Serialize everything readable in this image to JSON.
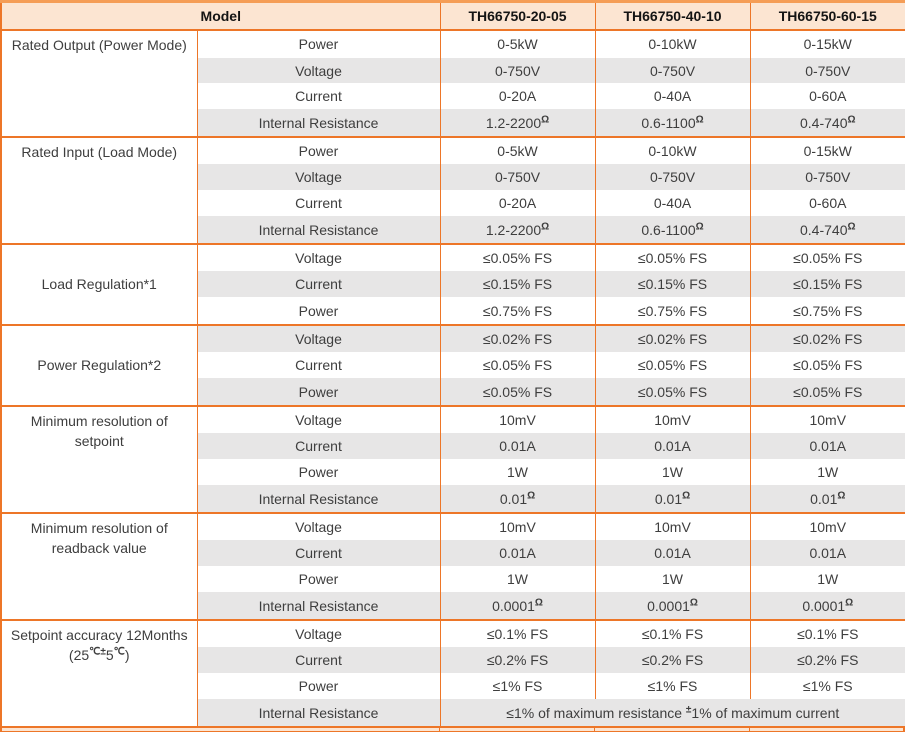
{
  "theme": {
    "orange": "#ED7628",
    "orange_light": "#F59D56",
    "peach": "#FCE5D2",
    "stripe_gray": "#E7E6E6",
    "text_body": "#3E3E3E",
    "text_head": "#141414"
  },
  "table": {
    "header": {
      "model_label": "Model",
      "model_columns": [
        "TH66750-20-05",
        "TH66750-40-10",
        "TH66750-60-15"
      ]
    },
    "sections": [
      {
        "group": "Rated Output (Power Mode)",
        "rows": [
          {
            "param": "Power",
            "values": [
              "0-5kW",
              "0-10kW",
              "0-15kW"
            ]
          },
          {
            "param": "Voltage",
            "values": [
              "0-750V",
              "0-750V",
              "0-750V"
            ]
          },
          {
            "param": "Current",
            "values": [
              "0-20A",
              "0-40A",
              "0-60A"
            ]
          },
          {
            "param": "Internal Resistance",
            "values": [
              "1.2-2200^{Ω}",
              "0.6-1100^{Ω}",
              "0.4-740^{Ω}"
            ]
          }
        ]
      },
      {
        "group": "Rated Input (Load Mode)",
        "rows": [
          {
            "param": "Power",
            "values": [
              "0-5kW",
              "0-10kW",
              "0-15kW"
            ]
          },
          {
            "param": "Voltage",
            "values": [
              "0-750V",
              "0-750V",
              "0-750V"
            ]
          },
          {
            "param": "Current",
            "values": [
              "0-20A",
              "0-40A",
              "0-60A"
            ]
          },
          {
            "param": "Internal Resistance",
            "values": [
              "1.2-2200^{Ω}",
              "0.6-1100^{Ω}",
              "0.4-740^{Ω}"
            ]
          }
        ]
      },
      {
        "group": "Load Regulation*1",
        "rows": [
          {
            "param": "Voltage",
            "values": [
              "≤0.05% FS",
              "≤0.05% FS",
              "≤0.05% FS"
            ]
          },
          {
            "param": "Current",
            "values": [
              "≤0.15% FS",
              "≤0.15% FS",
              "≤0.15% FS"
            ]
          },
          {
            "param": "Power",
            "values": [
              "≤0.75% FS",
              "≤0.75% FS",
              "≤0.75% FS"
            ]
          }
        ]
      },
      {
        "group": "Power Regulation*2",
        "rows": [
          {
            "param": "Voltage",
            "values": [
              "≤0.02% FS",
              "≤0.02% FS",
              "≤0.02% FS"
            ]
          },
          {
            "param": "Current",
            "values": [
              "≤0.05% FS",
              "≤0.05% FS",
              "≤0.05% FS"
            ]
          },
          {
            "param": "Power",
            "values": [
              "≤0.05% FS",
              "≤0.05% FS",
              "≤0.05% FS"
            ]
          }
        ]
      },
      {
        "group": "Minimum resolution of\nsetpoint",
        "rows": [
          {
            "param": "Voltage",
            "values": [
              "10mV",
              "10mV",
              "10mV"
            ]
          },
          {
            "param": "Current",
            "values": [
              "0.01A",
              "0.01A",
              "0.01A"
            ]
          },
          {
            "param": "Power",
            "values": [
              "1W",
              "1W",
              "1W"
            ]
          },
          {
            "param": "Internal Resistance",
            "values": [
              "0.01^{Ω}",
              "0.01^{Ω}",
              "0.01^{Ω}"
            ]
          }
        ]
      },
      {
        "group": "Minimum resolution of\nreadback value",
        "rows": [
          {
            "param": "Voltage",
            "values": [
              "10mV",
              "10mV",
              "10mV"
            ]
          },
          {
            "param": "Current",
            "values": [
              "0.01A",
              "0.01A",
              "0.01A"
            ]
          },
          {
            "param": "Power",
            "values": [
              "1W",
              "1W",
              "1W"
            ]
          },
          {
            "param": "Internal Resistance",
            "values": [
              "0.0001^{Ω}",
              "0.0001^{Ω}",
              "0.0001^{Ω}"
            ]
          }
        ]
      },
      {
        "group": "Setpoint accuracy 12Months\n(25^{℃±}5^{℃})",
        "rows": [
          {
            "param": "Voltage",
            "values": [
              "≤0.1% FS",
              "≤0.1% FS",
              "≤0.1% FS"
            ]
          },
          {
            "param": "Current",
            "values": [
              "≤0.2% FS",
              "≤0.2% FS",
              "≤0.2% FS"
            ]
          },
          {
            "param": "Power",
            "values": [
              "≤1% FS",
              "≤1% FS",
              "≤1% FS"
            ]
          },
          {
            "param": "Internal Resistance",
            "span_value": "≤1% of maximum resistance ^{±}1% of maximum current"
          }
        ]
      }
    ]
  }
}
